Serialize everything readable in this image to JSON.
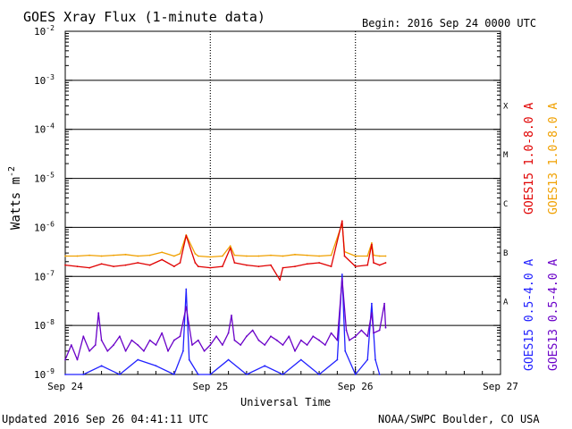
{
  "chart_data": {
    "type": "line",
    "title": "GOES Xray Flux (1-minute data)",
    "begin_label": "Begin:  2016 Sep 24 0000 UTC",
    "ylabel": "Watts m",
    "ylabel_sup": "-2",
    "xlabel": "Universal Time",
    "y_scale": "log",
    "ylim": [
      1e-09,
      0.01
    ],
    "y_ticks": [
      {
        "value": 0.01,
        "exp": "-2"
      },
      {
        "value": 0.001,
        "exp": "-3"
      },
      {
        "value": 0.0001,
        "exp": "-4"
      },
      {
        "value": 1e-05,
        "exp": "-5"
      },
      {
        "value": 1e-06,
        "exp": "-6"
      },
      {
        "value": 1e-07,
        "exp": "-7"
      },
      {
        "value": 1e-08,
        "exp": "-8"
      },
      {
        "value": 1e-09,
        "exp": "-9"
      }
    ],
    "x_range_hours": [
      0,
      72
    ],
    "x_ticks": [
      {
        "hour": 0,
        "label": "Sep 24"
      },
      {
        "hour": 24,
        "label": "Sep 25"
      },
      {
        "hour": 48,
        "label": "Sep 26"
      },
      {
        "hour": 72,
        "label": "Sep 27"
      }
    ],
    "flare_classes": [
      {
        "label": "X",
        "lo": 0.0001,
        "hi": 0.001
      },
      {
        "label": "M",
        "lo": 1e-05,
        "hi": 0.0001
      },
      {
        "label": "C",
        "lo": 1e-06,
        "hi": 1e-05
      },
      {
        "label": "B",
        "lo": 1e-07,
        "hi": 1e-06
      },
      {
        "label": "A",
        "lo": 1e-08,
        "hi": 1e-07
      }
    ],
    "grid_horizontal": true,
    "grid_vertical_dotted": true,
    "legend": [
      {
        "name": "GOES15 1.0-8.0 A",
        "color": "#e00000"
      },
      {
        "name": "GOES13 1.0-8.0 A",
        "color": "#f0a000"
      },
      {
        "name": "GOES15 0.5-4.0 A",
        "color": "#2020ff"
      },
      {
        "name": "GOES13 0.5-4.0 A",
        "color": "#6a00c8"
      }
    ],
    "series": [
      {
        "name": "GOES13 1.0-8.0 A",
        "color": "#f0a000",
        "x_hours": [
          0,
          2,
          4,
          6,
          8,
          10,
          12,
          14,
          16,
          18,
          19,
          20,
          21.5,
          22,
          24,
          26,
          27.3,
          28,
          30,
          32,
          34,
          36,
          38,
          40,
          42,
          44,
          45.8,
          46.2,
          48,
          50,
          50.7,
          51,
          52,
          53
        ],
        "values": [
          2.6e-07,
          2.6e-07,
          2.7e-07,
          2.6e-07,
          2.7e-07,
          2.8e-07,
          2.6e-07,
          2.7e-07,
          3.1e-07,
          2.6e-07,
          2.9e-07,
          7e-07,
          2.9e-07,
          2.6e-07,
          2.5e-07,
          2.6e-07,
          4.2e-07,
          2.7e-07,
          2.6e-07,
          2.6e-07,
          2.7e-07,
          2.6e-07,
          2.8e-07,
          2.7e-07,
          2.6e-07,
          2.7e-07,
          1.2e-06,
          3.2e-07,
          2.6e-07,
          2.6e-07,
          4.8e-07,
          2.7e-07,
          2.6e-07,
          2.6e-07
        ]
      },
      {
        "name": "GOES15 1.0-8.0 A",
        "color": "#e00000",
        "x_hours": [
          0,
          2,
          4,
          6,
          8,
          10,
          12,
          14,
          16,
          18,
          19,
          20,
          21.5,
          22,
          24,
          26,
          27.3,
          28,
          30,
          32,
          34,
          35.5,
          36,
          38,
          40,
          42,
          44,
          45.8,
          46.2,
          48,
          50,
          50.7,
          51,
          52,
          53
        ],
        "values": [
          1.7e-07,
          1.6e-07,
          1.5e-07,
          1.8e-07,
          1.6e-07,
          1.7e-07,
          1.9e-07,
          1.7e-07,
          2.2e-07,
          1.6e-07,
          1.9e-07,
          6.8e-07,
          1.9e-07,
          1.6e-07,
          1.5e-07,
          1.6e-07,
          3.8e-07,
          1.9e-07,
          1.7e-07,
          1.6e-07,
          1.7e-07,
          8.5e-08,
          1.5e-07,
          1.6e-07,
          1.8e-07,
          1.9e-07,
          1.6e-07,
          1.35e-06,
          2.6e-07,
          1.6e-07,
          1.7e-07,
          4.5e-07,
          1.9e-07,
          1.7e-07,
          1.9e-07
        ]
      },
      {
        "name": "GOES15 0.5-4.0 A",
        "color": "#2020ff",
        "x_hours": [
          0,
          3,
          6,
          9,
          12,
          15,
          18,
          19.5,
          20,
          20.5,
          22,
          24,
          27,
          30,
          33,
          36,
          39,
          42,
          45,
          45.8,
          46.3,
          48,
          50,
          50.7,
          51.3,
          52
        ],
        "values": [
          1e-09,
          1e-09,
          1.5e-09,
          1e-09,
          2e-09,
          1.5e-09,
          1e-09,
          3e-09,
          5.5e-08,
          2e-09,
          1e-09,
          1e-09,
          2e-09,
          1e-09,
          1.5e-09,
          1e-09,
          2e-09,
          1e-09,
          2e-09,
          1.1e-07,
          3e-09,
          1e-09,
          2e-09,
          2.8e-08,
          2e-09,
          1e-09
        ]
      },
      {
        "name": "GOES13 0.5-4.0 A",
        "color": "#6a00c8",
        "x_hours": [
          0,
          1,
          2,
          3,
          4,
          5,
          5.5,
          6,
          7,
          8,
          9,
          10,
          11,
          12,
          13,
          14,
          15,
          16,
          17,
          18,
          19,
          20,
          21,
          22,
          23,
          24,
          25,
          26,
          27,
          27.5,
          28,
          29,
          30,
          31,
          32,
          33,
          34,
          35,
          36,
          37,
          38,
          39,
          40,
          41,
          42,
          43,
          44,
          45,
          45.8,
          46.5,
          47,
          48,
          49,
          50,
          50.7,
          51,
          52,
          52.8,
          53
        ],
        "values": [
          2e-09,
          4e-09,
          2e-09,
          6e-09,
          3e-09,
          4e-09,
          1.8e-08,
          5e-09,
          3e-09,
          4e-09,
          6e-09,
          3e-09,
          5e-09,
          4e-09,
          3e-09,
          5e-09,
          4e-09,
          7e-09,
          3e-09,
          5e-09,
          6e-09,
          2.4e-08,
          4e-09,
          5e-09,
          3e-09,
          4e-09,
          6e-09,
          4e-09,
          7e-09,
          1.6e-08,
          5e-09,
          4e-09,
          6e-09,
          8e-09,
          5e-09,
          4e-09,
          6e-09,
          5e-09,
          4e-09,
          6e-09,
          3e-09,
          5e-09,
          4e-09,
          6e-09,
          5e-09,
          4e-09,
          7e-09,
          5e-09,
          9e-08,
          8e-09,
          5e-09,
          6e-09,
          8e-09,
          6e-09,
          1.8e-08,
          7e-09,
          8e-09,
          2.8e-08,
          9e-09
        ]
      }
    ]
  },
  "footer": {
    "updated": "Updated 2016 Sep 26 04:41:11 UTC",
    "credit": "NOAA/SWPC Boulder, CO USA"
  }
}
